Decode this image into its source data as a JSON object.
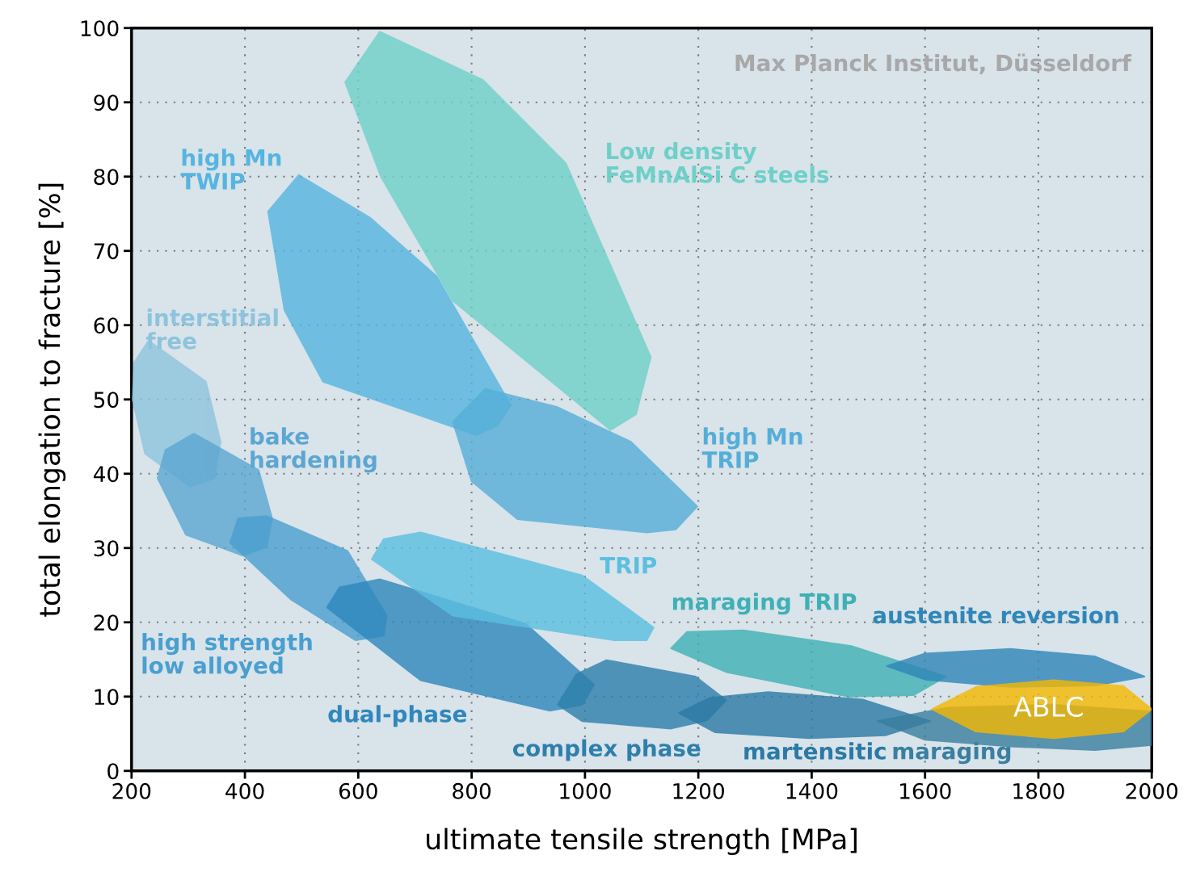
{
  "chart_data": {
    "type": "area",
    "xlabel": "ultimate tensile strength [MPa]",
    "ylabel": "total elongation to fracture [%]",
    "xlim": [
      200,
      2000
    ],
    "xticks": [
      200,
      400,
      600,
      800,
      1000,
      1200,
      1400,
      1600,
      1800,
      2000
    ],
    "ylim": [
      0,
      100
    ],
    "yticks": [
      0,
      10,
      20,
      30,
      40,
      50,
      60,
      70,
      80,
      90,
      100
    ],
    "grid": true,
    "series": [
      {
        "name": "Low density\nFeMnAlSi C steels",
        "color": "#6ed0c8",
        "x": [
          638,
          820,
          966,
          1116,
          1090,
          1045,
          767,
          640,
          577
        ],
        "values": [
          99.5,
          93,
          81.8,
          55.7,
          48,
          45.9,
          63.3,
          80,
          92.7
        ]
      },
      {
        "name": "high Mn\nTWIP",
        "color": "#56b5e0",
        "x": [
          495,
          620,
          738,
          869,
          845,
          809,
          538,
          470,
          441
        ],
        "values": [
          80.2,
          74.5,
          66.6,
          49.2,
          46.5,
          45.2,
          52.4,
          62,
          75.3
        ]
      },
      {
        "name": "high Mn\nTRIP",
        "color": "#55aed8",
        "x": [
          824,
          950,
          1081,
          1198,
          1160,
          1109,
          881,
          800,
          767
        ],
        "values": [
          51.4,
          49,
          44.3,
          35.6,
          32.5,
          32.1,
          33.9,
          39,
          47
        ]
      },
      {
        "name": "interstitial\nfree",
        "color": "#8ec3dc",
        "x": [
          230,
          331,
          357,
          346,
          303,
          224,
          202,
          205
        ],
        "values": [
          57.9,
          52.4,
          44.3,
          39.4,
          38.3,
          42.7,
          50,
          55
        ]
      },
      {
        "name": "bake\nhardening",
        "color": "#5ca6d2",
        "x": [
          310,
          424,
          448,
          438,
          396,
          296,
          246,
          260
        ],
        "values": [
          45.4,
          40.5,
          34,
          30.1,
          29,
          31.8,
          39.4,
          43.2
        ]
      },
      {
        "name": "high strength\nlow alloyed",
        "color": "#4a9fd0",
        "x": [
          438,
          581,
          650,
          645,
          595,
          481,
          374,
          388
        ],
        "values": [
          34.3,
          29.6,
          20.9,
          18.2,
          17.6,
          23.1,
          30.7,
          34
        ]
      },
      {
        "name": "dual-phase",
        "color": "#2f87bd",
        "x": [
          638,
          895,
          1016,
          995,
          938,
          710,
          545,
          567
        ],
        "values": [
          25.8,
          19.8,
          11.6,
          8.9,
          8.1,
          12.2,
          22,
          24.7
        ]
      },
      {
        "name": "TRIP",
        "color": "#5bbfe0",
        "x": [
          710,
          995,
          1121,
          1109,
          1052,
          767,
          624,
          645
        ],
        "values": [
          32.1,
          26.3,
          19.3,
          17.6,
          17.6,
          20.9,
          28.5,
          31.2
        ]
      },
      {
        "name": "complex phase",
        "color": "#2e7fac",
        "x": [
          1038,
          1195,
          1249,
          1215,
          1152,
          995,
          952,
          985
        ],
        "values": [
          14.9,
          12.7,
          9.5,
          6.8,
          5.7,
          6.7,
          8.9,
          13
        ]
      },
      {
        "name": "martensitic",
        "color": "#2b7aa5",
        "x": [
          1323,
          1490,
          1609,
          1530,
          1395,
          1230,
          1166,
          1220
        ],
        "values": [
          10.6,
          9.6,
          6.7,
          4.8,
          4.4,
          5.2,
          7.8,
          9.8
        ]
      },
      {
        "name": "maraging",
        "color": "#3a7f9f",
        "x": [
          1823,
          2000,
          2000,
          1900,
          1751,
          1600,
          1516,
          1640
        ],
        "values": [
          8.9,
          8,
          3.5,
          2.8,
          3.3,
          4.2,
          6.7,
          8.5
        ]
      },
      {
        "name": "maraging TRIP",
        "color": "#3fb0b5",
        "x": [
          1280,
          1470,
          1637,
          1580,
          1466,
          1250,
          1152,
          1180
        ],
        "values": [
          18.9,
          16.8,
          12.7,
          10.2,
          10,
          13.3,
          16.5,
          18.7
        ]
      },
      {
        "name": "austenite reversion",
        "color": "#2f86b8",
        "x": [
          1751,
          1900,
          1987,
          1900,
          1751,
          1600,
          1533,
          1600
        ],
        "values": [
          16.4,
          15.4,
          12.7,
          11.5,
          11.3,
          12.3,
          14.1,
          15.8
        ]
      },
      {
        "name": "ABLC",
        "color": "#f5b800",
        "x": [
          1827,
          1950,
          2000,
          1950,
          1827,
          1690,
          1612,
          1690
        ],
        "values": [
          12.2,
          11.4,
          8.3,
          5.3,
          4.4,
          5.3,
          8.3,
          11.3
        ]
      }
    ],
    "annotations": [
      "Max Planck Institut, Düsseldorf"
    ]
  }
}
